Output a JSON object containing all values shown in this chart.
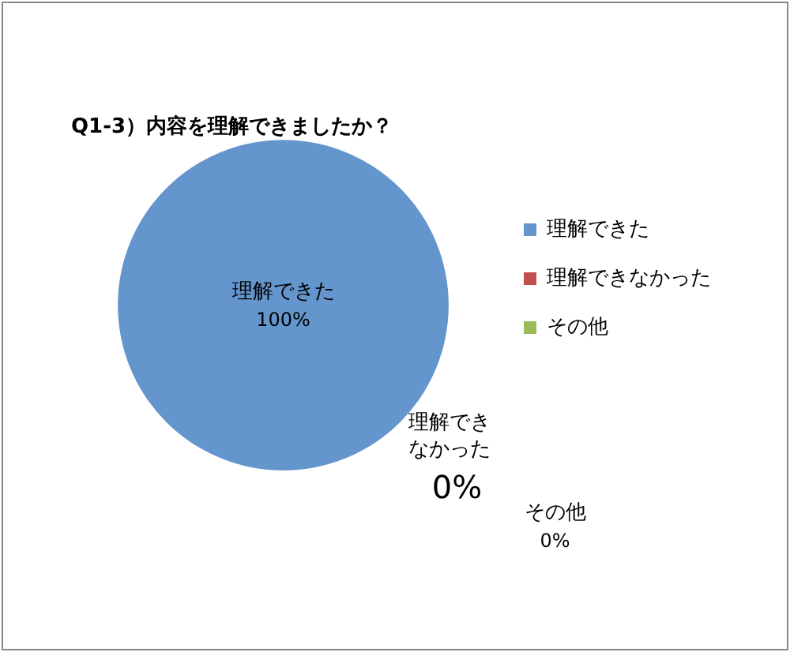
{
  "chart_data": {
    "type": "pie",
    "title": "Q1-3）内容を理解できましたか？",
    "categories": [
      "理解できた",
      "理解できなかった",
      "その他"
    ],
    "values": [
      100,
      0,
      0
    ],
    "colors": [
      "#6495cd",
      "#c0504d",
      "#9bbb59"
    ],
    "value_labels": [
      "100%",
      "0%",
      "0%"
    ],
    "legend": "right"
  }
}
